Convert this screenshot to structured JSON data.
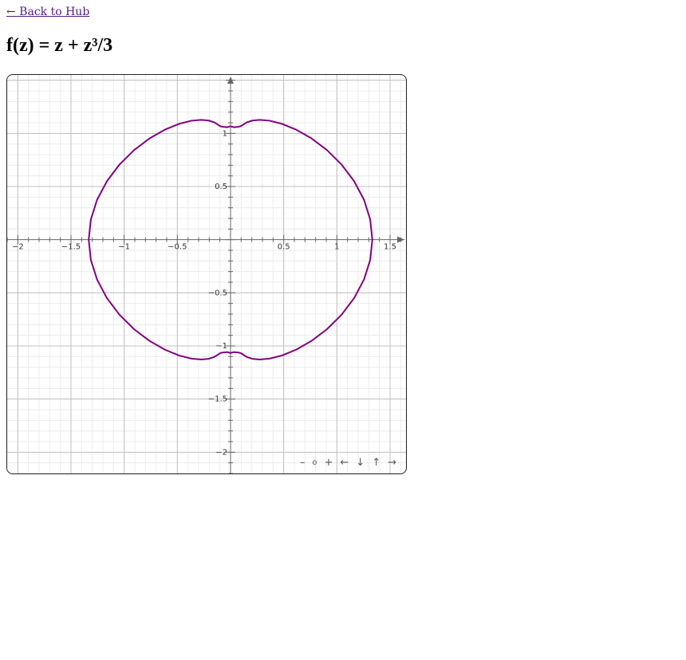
{
  "back_link": "← Back to Hub",
  "title": "f(z) = z + z³/3",
  "nav": {
    "zoom_out": "–",
    "zoom_reset": "o",
    "zoom_in": "+",
    "left": "←",
    "down": "↓",
    "up": "↑",
    "right": "→"
  },
  "chart_data": {
    "type": "line",
    "title": "",
    "xlabel": "",
    "ylabel": "",
    "xlim": [
      -2.1,
      1.65
    ],
    "ylim": [
      -2.2,
      1.55
    ],
    "grid": true,
    "x_ticks": [
      -2,
      -1.5,
      -1,
      -0.5,
      0.5,
      1,
      1.5
    ],
    "x_tick_labels": [
      "−2",
      "−1.5",
      "−1",
      "−0.5",
      "0.5",
      "1",
      "1.5"
    ],
    "y_ticks": [
      -2,
      -1.5,
      -1,
      -0.5,
      0.5,
      1
    ],
    "y_tick_labels": [
      "−2",
      "−1.5",
      "−1",
      "−0.5",
      "0.5",
      "1"
    ],
    "curve_color": "#800080",
    "axis_color": "#666666",
    "grid_color": "#c0c0c0",
    "series": [
      {
        "description_of_curve": "image of the unit circle under f(z) = z + z^3/3",
        "x": [
          1.3333,
          1.3133,
          1.2548,
          1.1625,
          1.0436,
          0.9068,
          0.7617,
          0.618,
          0.4846,
          0.3686,
          0.2748,
          0.2049,
          0.1574,
          0.1276,
          0.1083,
          0.0912,
          0.0681,
          0.0322,
          0.0,
          -0.0322,
          -0.0681,
          -0.0912,
          -0.1083,
          -0.1276,
          -0.1574,
          -0.2049,
          -0.2748,
          -0.3686,
          -0.4846,
          -0.618,
          -0.7617,
          -0.9068,
          -1.0436,
          -1.1625,
          -1.2548,
          -1.3133,
          -1.3333,
          -1.3133,
          -1.2548,
          -1.1625,
          -1.0436,
          -0.9068,
          -0.7617,
          -0.618,
          -0.4846,
          -0.3686,
          -0.2748,
          -0.2049,
          -0.1574,
          -0.1276,
          -0.1083,
          -0.0912,
          -0.0681,
          -0.0322,
          0.0,
          0.0322,
          0.0681,
          0.0912,
          0.1083,
          0.1276,
          0.1574,
          0.2049,
          0.2748,
          0.3686,
          0.4846,
          0.618,
          0.7617,
          0.9068,
          1.0436,
          1.1625,
          1.2548,
          1.3133,
          1.3333
        ],
        "y": [
          0.0,
          0.1903,
          0.3753,
          0.5494,
          0.7069,
          0.8424,
          0.9524,
          1.0347,
          1.0896,
          1.1192,
          1.1276,
          1.1207,
          1.1055,
          1.0885,
          1.0744,
          1.0657,
          1.0614,
          1.0579,
          1.0667,
          1.0579,
          1.0614,
          1.0657,
          1.0744,
          1.0885,
          1.1055,
          1.1207,
          1.1276,
          1.1192,
          1.0896,
          1.0347,
          0.9524,
          0.8424,
          0.7069,
          0.5494,
          0.3753,
          0.1903,
          0.0,
          -0.1903,
          -0.3753,
          -0.5494,
          -0.7069,
          -0.8424,
          -0.9524,
          -1.0347,
          -1.0896,
          -1.1192,
          -1.1276,
          -1.1207,
          -1.1055,
          -1.0885,
          -1.0744,
          -1.0657,
          -1.0614,
          -1.0579,
          -1.0667,
          -1.0579,
          -1.0614,
          -1.0657,
          -1.0744,
          -1.0885,
          -1.1055,
          -1.1207,
          -1.1276,
          -1.1192,
          -1.0896,
          -1.0347,
          -0.9524,
          -0.8424,
          -0.7069,
          -0.5494,
          -0.3753,
          -0.1903,
          0.0
        ]
      }
    ]
  }
}
